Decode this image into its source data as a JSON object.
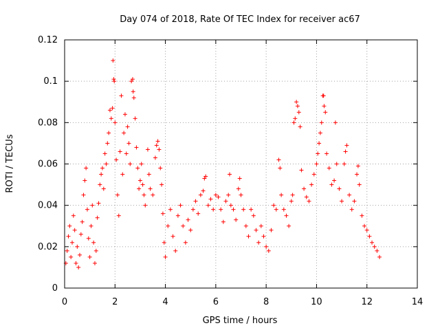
{
  "chart_data": {
    "type": "scatter",
    "title": "Day 074 of 2018, Rate Of TEC Index for receiver ac67",
    "xlabel": "GPS time / hours",
    "ylabel": "ROTI / TECUs",
    "xlim": [
      0,
      14
    ],
    "ylim": [
      0,
      0.12
    ],
    "xticks": [
      0,
      2,
      4,
      6,
      8,
      10,
      12,
      14
    ],
    "yticks": [
      0,
      0.02,
      0.04,
      0.06,
      0.08,
      0.1,
      0.12
    ],
    "xtick_labels": [
      "0",
      "2",
      "4",
      "6",
      "8",
      "10",
      "12",
      "14"
    ],
    "ytick_labels": [
      "0",
      "0.02",
      "0.04",
      "0.06",
      "0.08",
      "0.1",
      "0.12"
    ],
    "grid": true,
    "marker": "+",
    "series": [
      {
        "name": "ac67 ROTI",
        "color": "#ff0000",
        "points": [
          [
            0.05,
            0.012
          ],
          [
            0.1,
            0.018
          ],
          [
            0.15,
            0.025
          ],
          [
            0.2,
            0.03
          ],
          [
            0.25,
            0.015
          ],
          [
            0.3,
            0.022
          ],
          [
            0.35,
            0.035
          ],
          [
            0.4,
            0.028
          ],
          [
            0.45,
            0.012
          ],
          [
            0.5,
            0.02
          ],
          [
            0.55,
            0.01
          ],
          [
            0.6,
            0.016
          ],
          [
            0.65,
            0.026
          ],
          [
            0.7,
            0.032
          ],
          [
            0.75,
            0.045
          ],
          [
            0.8,
            0.052
          ],
          [
            0.85,
            0.058
          ],
          [
            0.9,
            0.038
          ],
          [
            0.95,
            0.024
          ],
          [
            1.0,
            0.015
          ],
          [
            1.05,
            0.03
          ],
          [
            1.1,
            0.04
          ],
          [
            1.15,
            0.022
          ],
          [
            1.2,
            0.012
          ],
          [
            1.25,
            0.018
          ],
          [
            1.3,
            0.034
          ],
          [
            1.35,
            0.041
          ],
          [
            1.4,
            0.05
          ],
          [
            1.45,
            0.055
          ],
          [
            1.5,
            0.058
          ],
          [
            1.55,
            0.048
          ],
          [
            1.6,
            0.065
          ],
          [
            1.65,
            0.06
          ],
          [
            1.7,
            0.07
          ],
          [
            1.75,
            0.075
          ],
          [
            1.8,
            0.086
          ],
          [
            1.85,
            0.082
          ],
          [
            1.9,
            0.087
          ],
          [
            1.92,
            0.11
          ],
          [
            1.95,
            0.101
          ],
          [
            1.97,
            0.1
          ],
          [
            2.0,
            0.08
          ],
          [
            2.05,
            0.062
          ],
          [
            2.1,
            0.045
          ],
          [
            2.15,
            0.035
          ],
          [
            2.2,
            0.066
          ],
          [
            2.25,
            0.093
          ],
          [
            2.3,
            0.055
          ],
          [
            2.35,
            0.075
          ],
          [
            2.4,
            0.084
          ],
          [
            2.45,
            0.065
          ],
          [
            2.5,
            0.078
          ],
          [
            2.55,
            0.07
          ],
          [
            2.6,
            0.06
          ],
          [
            2.65,
            0.1
          ],
          [
            2.7,
            0.101
          ],
          [
            2.72,
            0.095
          ],
          [
            2.75,
            0.092
          ],
          [
            2.8,
            0.082
          ],
          [
            2.85,
            0.068
          ],
          [
            2.9,
            0.058
          ],
          [
            2.95,
            0.048
          ],
          [
            3.0,
            0.052
          ],
          [
            3.05,
            0.06
          ],
          [
            3.1,
            0.05
          ],
          [
            3.15,
            0.045
          ],
          [
            3.2,
            0.04
          ],
          [
            3.3,
            0.067
          ],
          [
            3.35,
            0.055
          ],
          [
            3.4,
            0.048
          ],
          [
            3.5,
            0.045
          ],
          [
            3.6,
            0.063
          ],
          [
            3.65,
            0.069
          ],
          [
            3.7,
            0.071
          ],
          [
            3.75,
            0.067
          ],
          [
            3.8,
            0.058
          ],
          [
            3.85,
            0.05
          ],
          [
            3.9,
            0.036
          ],
          [
            3.95,
            0.022
          ],
          [
            4.0,
            0.015
          ],
          [
            4.1,
            0.03
          ],
          [
            4.2,
            0.038
          ],
          [
            4.3,
            0.025
          ],
          [
            4.4,
            0.018
          ],
          [
            4.5,
            0.035
          ],
          [
            4.6,
            0.04
          ],
          [
            4.7,
            0.03
          ],
          [
            4.8,
            0.022
          ],
          [
            4.9,
            0.033
          ],
          [
            5.0,
            0.028
          ],
          [
            5.1,
            0.038
          ],
          [
            5.2,
            0.042
          ],
          [
            5.3,
            0.036
          ],
          [
            5.4,
            0.045
          ],
          [
            5.5,
            0.047
          ],
          [
            5.55,
            0.053
          ],
          [
            5.6,
            0.054
          ],
          [
            5.7,
            0.04
          ],
          [
            5.8,
            0.043
          ],
          [
            5.9,
            0.038
          ],
          [
            6.0,
            0.045
          ],
          [
            6.1,
            0.044
          ],
          [
            6.2,
            0.038
          ],
          [
            6.3,
            0.032
          ],
          [
            6.4,
            0.042
          ],
          [
            6.5,
            0.045
          ],
          [
            6.55,
            0.055
          ],
          [
            6.6,
            0.04
          ],
          [
            6.7,
            0.038
          ],
          [
            6.8,
            0.033
          ],
          [
            6.9,
            0.048
          ],
          [
            6.95,
            0.053
          ],
          [
            7.0,
            0.045
          ],
          [
            7.1,
            0.038
          ],
          [
            7.2,
            0.03
          ],
          [
            7.3,
            0.025
          ],
          [
            7.4,
            0.038
          ],
          [
            7.5,
            0.035
          ],
          [
            7.6,
            0.028
          ],
          [
            7.7,
            0.022
          ],
          [
            7.8,
            0.03
          ],
          [
            7.9,
            0.025
          ],
          [
            8.0,
            0.02
          ],
          [
            8.1,
            0.018
          ],
          [
            8.2,
            0.028
          ],
          [
            8.3,
            0.04
          ],
          [
            8.4,
            0.038
          ],
          [
            8.5,
            0.062
          ],
          [
            8.55,
            0.058
          ],
          [
            8.6,
            0.045
          ],
          [
            8.7,
            0.038
          ],
          [
            8.8,
            0.035
          ],
          [
            8.9,
            0.03
          ],
          [
            9.0,
            0.042
          ],
          [
            9.05,
            0.045
          ],
          [
            9.1,
            0.08
          ],
          [
            9.15,
            0.082
          ],
          [
            9.2,
            0.09
          ],
          [
            9.25,
            0.088
          ],
          [
            9.3,
            0.085
          ],
          [
            9.35,
            0.078
          ],
          [
            9.4,
            0.057
          ],
          [
            9.5,
            0.048
          ],
          [
            9.6,
            0.044
          ],
          [
            9.7,
            0.042
          ],
          [
            9.8,
            0.05
          ],
          [
            9.9,
            0.055
          ],
          [
            10.0,
            0.06
          ],
          [
            10.05,
            0.065
          ],
          [
            10.1,
            0.07
          ],
          [
            10.15,
            0.075
          ],
          [
            10.2,
            0.08
          ],
          [
            10.25,
            0.093
          ],
          [
            10.28,
            0.093
          ],
          [
            10.3,
            0.088
          ],
          [
            10.35,
            0.085
          ],
          [
            10.4,
            0.065
          ],
          [
            10.5,
            0.058
          ],
          [
            10.6,
            0.05
          ],
          [
            10.7,
            0.052
          ],
          [
            10.75,
            0.08
          ],
          [
            10.8,
            0.06
          ],
          [
            10.9,
            0.048
          ],
          [
            11.0,
            0.042
          ],
          [
            11.1,
            0.06
          ],
          [
            11.15,
            0.066
          ],
          [
            11.2,
            0.069
          ],
          [
            11.3,
            0.045
          ],
          [
            11.4,
            0.038
          ],
          [
            11.5,
            0.042
          ],
          [
            11.6,
            0.055
          ],
          [
            11.65,
            0.059
          ],
          [
            11.7,
            0.05
          ],
          [
            11.8,
            0.035
          ],
          [
            11.9,
            0.03
          ],
          [
            12.0,
            0.028
          ],
          [
            12.1,
            0.025
          ],
          [
            12.2,
            0.022
          ],
          [
            12.3,
            0.02
          ],
          [
            12.4,
            0.018
          ],
          [
            12.5,
            0.015
          ]
        ]
      }
    ]
  }
}
